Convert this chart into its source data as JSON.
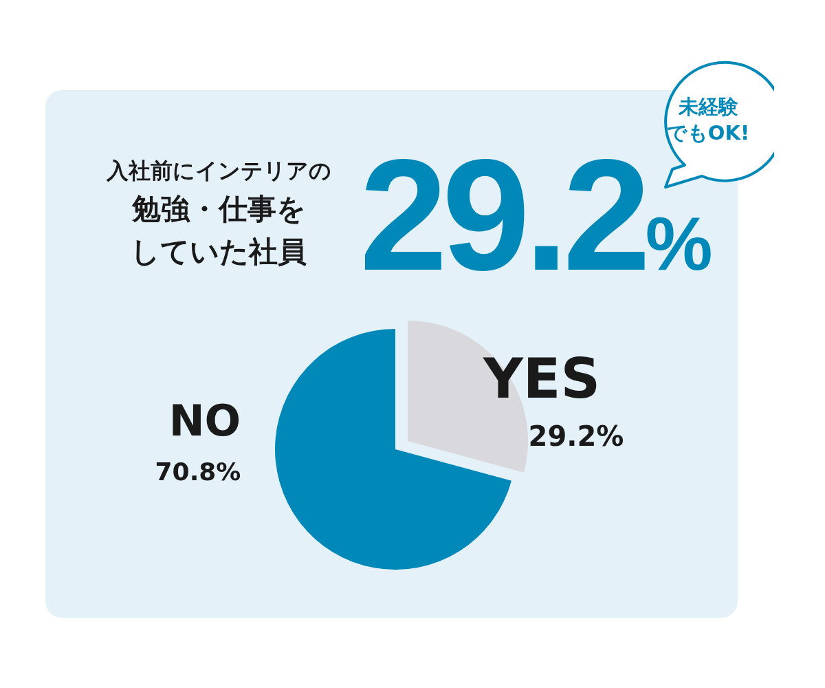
{
  "chart_data": {
    "type": "pie",
    "title": "入社前にインテリアの",
    "subtitle": "勉強・仕事をしていた社員",
    "categories": [
      "YES",
      "NO"
    ],
    "values": [
      29.2,
      70.8
    ],
    "colors": [
      "#d9d8dc",
      "#0088b8"
    ],
    "value_labels": [
      "29.2%",
      "70.8%"
    ],
    "annotations": [
      "29.2%",
      "未経験",
      "でもOK!"
    ],
    "legend": false
  }
}
